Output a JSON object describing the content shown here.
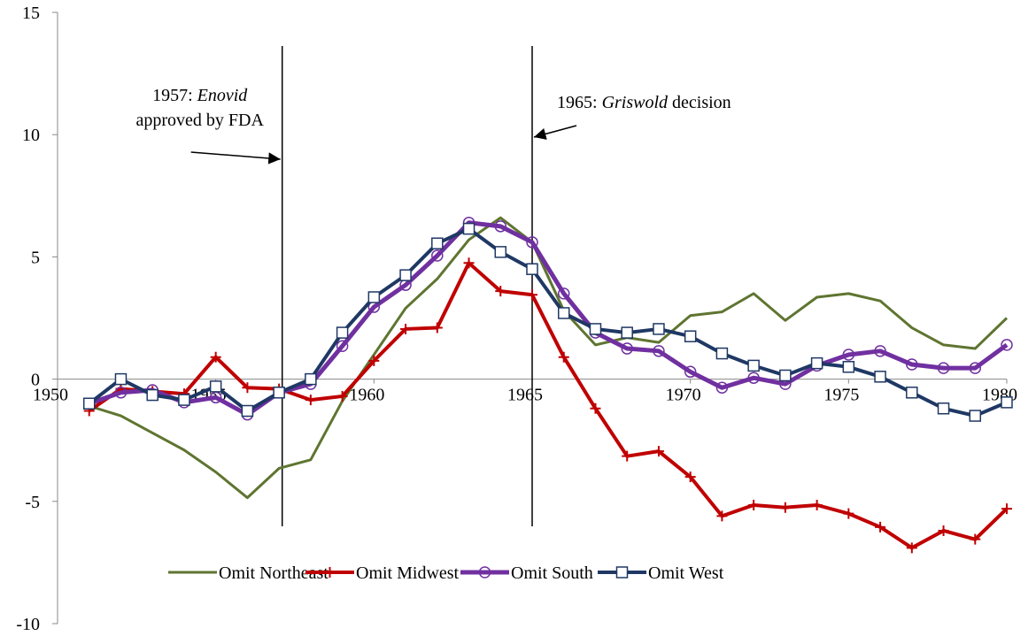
{
  "chart_data": {
    "type": "line",
    "x": [
      1951,
      1952,
      1953,
      1954,
      1955,
      1956,
      1957,
      1958,
      1959,
      1960,
      1961,
      1962,
      1963,
      1964,
      1965,
      1966,
      1967,
      1968,
      1969,
      1970,
      1971,
      1972,
      1973,
      1974,
      1975,
      1976,
      1977,
      1978,
      1979,
      1980
    ],
    "xlim": [
      1950,
      1980
    ],
    "xticks": [
      1950,
      1955,
      1960,
      1965,
      1970,
      1975,
      1980
    ],
    "ylim": [
      -10,
      15
    ],
    "yticks": [
      -10,
      -5,
      0,
      5,
      10,
      15
    ],
    "legend": "bottom",
    "series": [
      {
        "name": "Omit Northeast",
        "color": "#5f7530",
        "marker": "none",
        "width": 3,
        "values": [
          -1.1,
          -1.5,
          -2.2,
          -2.9,
          -3.8,
          -4.85,
          -3.65,
          -3.3,
          -0.9,
          1.0,
          2.9,
          4.1,
          5.7,
          6.6,
          5.6,
          2.8,
          1.4,
          1.7,
          1.5,
          2.6,
          2.75,
          3.5,
          2.4,
          3.35,
          3.5,
          3.2,
          2.1,
          1.4,
          1.25,
          2.5
        ]
      },
      {
        "name": "Omit Midwest",
        "color": "#c00000",
        "marker": "plus",
        "width": 4,
        "values": [
          -1.3,
          -0.4,
          -0.5,
          -0.6,
          0.9,
          -0.35,
          -0.4,
          -0.85,
          -0.7,
          0.75,
          2.05,
          2.1,
          4.75,
          3.6,
          3.45,
          0.9,
          -1.2,
          -3.15,
          -2.95,
          -4.0,
          -5.6,
          -5.15,
          -5.25,
          -5.15,
          -5.5,
          -6.05,
          -6.9,
          -6.2,
          -6.55,
          -5.3
        ]
      },
      {
        "name": "Omit South",
        "color": "#7030a0",
        "marker": "circle",
        "width": 5,
        "values": [
          -1.0,
          -0.55,
          -0.45,
          -0.95,
          -0.75,
          -1.45,
          -0.55,
          -0.2,
          1.35,
          2.95,
          3.85,
          5.05,
          6.4,
          6.25,
          5.6,
          3.5,
          1.9,
          1.25,
          1.15,
          0.3,
          -0.35,
          0.05,
          -0.2,
          0.55,
          1.0,
          1.15,
          0.6,
          0.45,
          0.45,
          1.4
        ]
      },
      {
        "name": "Omit West",
        "color": "#1f3864",
        "marker": "square",
        "width": 4,
        "values": [
          -1.0,
          0.0,
          -0.65,
          -0.85,
          -0.3,
          -1.3,
          -0.55,
          0.0,
          1.9,
          3.35,
          4.25,
          5.55,
          6.15,
          5.2,
          4.5,
          2.7,
          2.05,
          1.9,
          2.05,
          1.75,
          1.05,
          0.55,
          0.15,
          0.65,
          0.5,
          0.1,
          -0.55,
          -1.2,
          -1.5,
          -0.95
        ]
      }
    ],
    "annotations": [
      {
        "x": 1957.1,
        "prefix": "1957: ",
        "italic": "Enovid",
        "suffix": "",
        "line_2": "approved by FDA"
      },
      {
        "x": 1965,
        "prefix": "1965: ",
        "italic": "Griswold",
        "suffix": " decision"
      }
    ]
  }
}
